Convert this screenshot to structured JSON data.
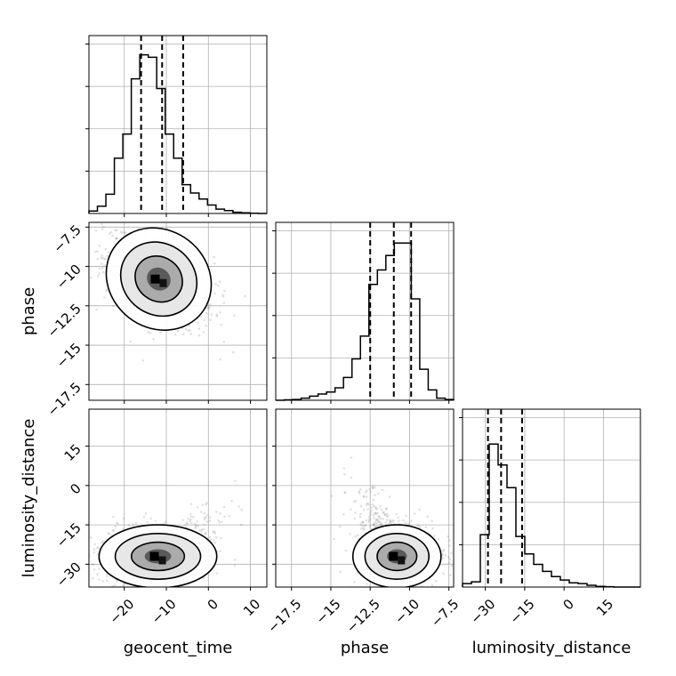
{
  "chart_data": {
    "type": "corner",
    "grid": true,
    "parameters": [
      {
        "name": "geocent_time",
        "label": "geocent_time",
        "range": [
          -28.4,
          13.9
        ],
        "ticks": [
          -20,
          -10,
          0,
          10
        ],
        "quantiles": [
          -16,
          -11,
          -6
        ],
        "hist_ymax": 7.4,
        "hist": [
          0.1,
          0.3,
          0.8,
          2.3,
          3.3,
          5.6,
          6.6,
          6.5,
          5.2,
          3.3,
          2.3,
          1.2,
          0.85,
          0.6,
          0.35,
          0.18,
          0.12,
          0.05,
          0.03,
          0.01,
          0.0
        ]
      },
      {
        "name": "phase",
        "label": "phase",
        "range": [
          -18.5,
          -7.2
        ],
        "ticks": [
          -17.5,
          -15.0,
          -12.5,
          -10.0,
          -7.5
        ],
        "quantiles": [
          -12.5,
          -11,
          -9.9
        ],
        "hist_ymax": 4.3,
        "hist": [
          0.0,
          0.01,
          0.02,
          0.05,
          0.1,
          0.15,
          0.2,
          0.3,
          0.55,
          1.0,
          1.55,
          2.8,
          3.15,
          3.5,
          3.8,
          3.8,
          2.45,
          0.75,
          0.25,
          0.05,
          0.02
        ]
      },
      {
        "name": "luminosity_distance",
        "label": "luminosity_distance",
        "range": [
          -38.7,
          29.1
        ],
        "ticks": [
          -30,
          -15,
          0,
          15
        ],
        "quantiles": [
          -29,
          -24,
          -16
        ],
        "hist_ymax": 5.1,
        "hist": [
          0.1,
          0.15,
          1.5,
          4.1,
          3.5,
          2.85,
          1.45,
          0.95,
          0.65,
          0.45,
          0.3,
          0.2,
          0.12,
          0.1,
          0.05,
          0.02,
          0.01,
          0.0,
          0.0,
          0.0
        ]
      }
    ],
    "joint": [
      {
        "x": "geocent_time",
        "y": "phase",
        "mean": [
          -11.8,
          -10.8
        ],
        "sd": [
          6.5,
          1.55
        ],
        "corr": -0.45
      },
      {
        "x": "geocent_time",
        "y": "luminosity_distance",
        "mean": [
          -12,
          -27
        ],
        "sd": [
          7,
          6
        ],
        "corr": 0.0
      },
      {
        "x": "phase",
        "y": "luminosity_distance",
        "mean": [
          -10.8,
          -27
        ],
        "sd": [
          1.4,
          6
        ],
        "corr": 0.0
      }
    ]
  }
}
